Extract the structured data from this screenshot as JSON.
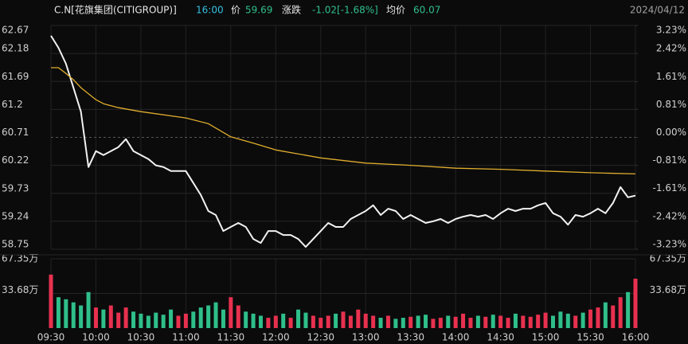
{
  "header": {
    "symbol": "C.N[花旗集团(CITIGROUP)]",
    "time": "16:00",
    "price_label": "价",
    "price": 59.69,
    "change_label": "涨跌",
    "change": "-1.02[-1.68%]",
    "avg_label": "均价",
    "avg": 60.07,
    "date": "2024/04/12"
  },
  "chart_data": [
    {
      "type": "line",
      "x": [
        "09:30",
        "09:35",
        "09:40",
        "09:45",
        "09:50",
        "09:55",
        "10:00",
        "10:05",
        "10:10",
        "10:15",
        "10:20",
        "10:25",
        "10:30",
        "10:35",
        "10:40",
        "10:45",
        "10:50",
        "10:55",
        "11:00",
        "11:05",
        "11:10",
        "11:15",
        "11:20",
        "11:25",
        "11:30",
        "11:35",
        "11:40",
        "11:45",
        "11:50",
        "11:55",
        "12:00",
        "12:05",
        "12:10",
        "12:15",
        "12:20",
        "12:25",
        "12:30",
        "12:35",
        "12:40",
        "12:45",
        "12:50",
        "12:55",
        "13:00",
        "13:05",
        "13:10",
        "13:15",
        "13:20",
        "13:25",
        "13:30",
        "13:35",
        "13:40",
        "13:45",
        "13:50",
        "13:55",
        "14:00",
        "14:05",
        "14:10",
        "14:15",
        "14:20",
        "14:25",
        "14:30",
        "14:35",
        "14:40",
        "14:45",
        "14:50",
        "14:55",
        "15:00",
        "15:05",
        "15:10",
        "15:15",
        "15:20",
        "15:25",
        "15:30",
        "15:35",
        "15:40",
        "15:45",
        "15:50",
        "15:55",
        "16:00"
      ],
      "series": [
        {
          "name": "价",
          "color": "#f2f2f2",
          "values": [
            62.49,
            62.28,
            62.0,
            61.58,
            61.16,
            60.19,
            60.47,
            60.4,
            60.47,
            60.54,
            60.68,
            60.47,
            60.4,
            60.33,
            60.22,
            60.19,
            60.12,
            60.12,
            60.12,
            59.91,
            59.7,
            59.42,
            59.35,
            59.07,
            59.14,
            59.21,
            59.14,
            58.93,
            58.86,
            59.07,
            59.07,
            59.0,
            59.0,
            58.93,
            58.79,
            58.93,
            59.07,
            59.21,
            59.14,
            59.14,
            59.28,
            59.35,
            59.42,
            59.52,
            59.35,
            59.46,
            59.42,
            59.28,
            59.35,
            59.28,
            59.21,
            59.24,
            59.28,
            59.21,
            59.28,
            59.32,
            59.35,
            59.32,
            59.35,
            59.28,
            59.38,
            59.46,
            59.42,
            59.46,
            59.46,
            59.52,
            59.56,
            59.38,
            59.32,
            59.18,
            59.35,
            59.32,
            59.38,
            59.46,
            59.38,
            59.56,
            59.84,
            59.66,
            59.69
          ]
        },
        {
          "name": "均价",
          "color": "#e0ad2c",
          "x": [
            "09:30",
            "09:35",
            "09:40",
            "09:45",
            "09:50",
            "10:00",
            "10:05",
            "10:15",
            "10:30",
            "11:00",
            "11:15",
            "11:30",
            "11:45",
            "12:00",
            "12:30",
            "13:00",
            "13:30",
            "14:00",
            "14:30",
            "15:00",
            "15:30",
            "16:00"
          ],
          "values": [
            61.93,
            61.93,
            61.83,
            61.72,
            61.58,
            61.37,
            61.3,
            61.23,
            61.16,
            61.05,
            60.95,
            60.72,
            60.61,
            60.49,
            60.35,
            60.26,
            60.22,
            60.17,
            60.15,
            60.12,
            60.09,
            60.07
          ]
        }
      ],
      "ylim": [
        58.75,
        62.67
      ],
      "yticks": [
        58.75,
        59.24,
        59.73,
        60.22,
        60.71,
        61.2,
        61.69,
        62.18,
        62.67
      ],
      "y2lim": [
        -3.23,
        3.23
      ],
      "y2ticks": [
        {
          "value": -3.23,
          "label": "-3.23%"
        },
        {
          "value": -2.42,
          "label": "-2.42%"
        },
        {
          "value": -1.61,
          "label": "-1.61%"
        },
        {
          "value": -0.81,
          "label": "-0.81%"
        },
        {
          "value": 0,
          "label": "0.00%"
        },
        {
          "value": 0.81,
          "label": "0.81%"
        },
        {
          "value": 1.61,
          "label": "1.61%"
        },
        {
          "value": 2.42,
          "label": "2.42%"
        },
        {
          "value": 3.23,
          "label": "3.23%"
        }
      ],
      "up_color": "#e8314f",
      "down_color": "#2fbf8a",
      "grid": true
    },
    {
      "type": "bar",
      "x": [
        "09:30",
        "09:35",
        "09:40",
        "09:45",
        "09:50",
        "09:55",
        "10:00",
        "10:05",
        "10:10",
        "10:15",
        "10:20",
        "10:25",
        "10:30",
        "10:35",
        "10:40",
        "10:45",
        "10:50",
        "10:55",
        "11:00",
        "11:05",
        "11:10",
        "11:15",
        "11:20",
        "11:25",
        "11:30",
        "11:35",
        "11:40",
        "11:45",
        "11:50",
        "11:55",
        "12:00",
        "12:05",
        "12:10",
        "12:15",
        "12:20",
        "12:25",
        "12:30",
        "12:35",
        "12:40",
        "12:45",
        "12:50",
        "12:55",
        "13:00",
        "13:05",
        "13:10",
        "13:15",
        "13:20",
        "13:25",
        "13:30",
        "13:35",
        "13:40",
        "13:45",
        "13:50",
        "13:55",
        "14:00",
        "14:05",
        "14:10",
        "14:15",
        "14:20",
        "14:25",
        "14:30",
        "14:35",
        "14:40",
        "14:45",
        "14:50",
        "14:55",
        "15:00",
        "15:05",
        "15:10",
        "15:15",
        "15:20",
        "15:25",
        "15:30",
        "15:35",
        "15:40",
        "15:45",
        "15:50",
        "15:55",
        "16:00"
      ],
      "values": [
        52,
        30,
        28,
        25,
        22,
        35,
        20,
        18,
        22,
        15,
        20,
        16,
        14,
        12,
        15,
        13,
        18,
        12,
        14,
        16,
        20,
        22,
        25,
        18,
        30,
        22,
        16,
        14,
        12,
        10,
        12,
        14,
        10,
        18,
        15,
        12,
        10,
        12,
        14,
        16,
        12,
        18,
        14,
        12,
        10,
        12,
        9,
        10,
        11,
        12,
        13,
        9,
        10,
        12,
        11,
        14,
        10,
        12,
        11,
        13,
        12,
        10,
        14,
        12,
        11,
        13,
        15,
        12,
        16,
        14,
        12,
        15,
        18,
        20,
        25,
        22,
        30,
        35,
        48
      ],
      "ylim": [
        0,
        67.35
      ],
      "yticks": [
        {
          "value": 33.68,
          "label": "33.68万"
        },
        {
          "value": 67.35,
          "label": "67.35万"
        }
      ],
      "xticks": [
        "09:30",
        "10:00",
        "10:30",
        "11:00",
        "11:30",
        "12:00",
        "12:30",
        "13:00",
        "13:30",
        "14:00",
        "14:30",
        "15:00",
        "15:30",
        "16:00"
      ],
      "grid": true
    }
  ]
}
